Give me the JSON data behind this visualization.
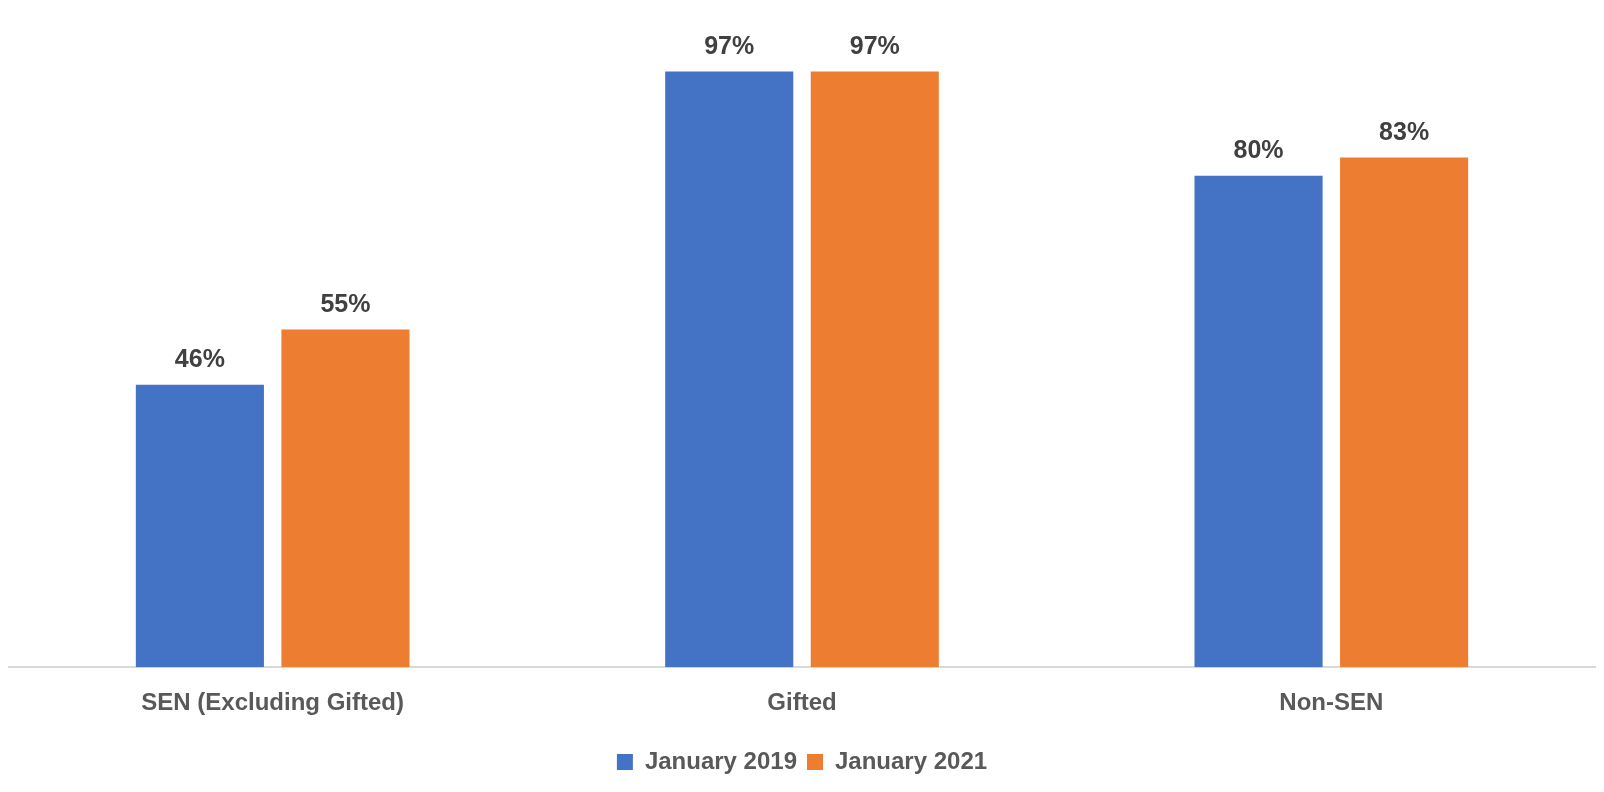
{
  "chart_data": {
    "type": "bar",
    "categories": [
      "SEN (Excluding Gifted)",
      "Gifted",
      "Non-SEN"
    ],
    "series": [
      {
        "name": "January 2019",
        "color": "#4472c4",
        "values": [
          46,
          97,
          80
        ],
        "value_labels": [
          "46%",
          "97%",
          "80%"
        ]
      },
      {
        "name": "January 2021",
        "color": "#ed7d31",
        "values": [
          55,
          97,
          83
        ],
        "value_labels": [
          "55%",
          "97%",
          "83%"
        ]
      }
    ],
    "legend": "bottom"
  }
}
